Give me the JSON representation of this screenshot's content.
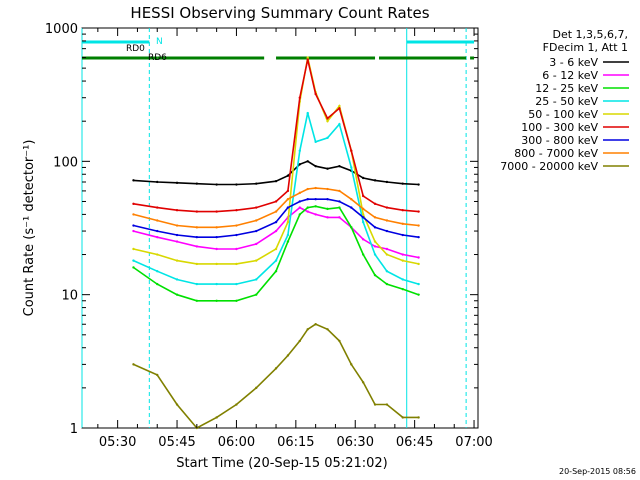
{
  "chart_data": {
    "type": "line",
    "title": "HESSI Observing Summary Count Rates",
    "xlabel": "Start Time (20-Sep-15 05:21:02)",
    "ylabel": "Count Rate (s⁻¹ detector⁻¹)",
    "yscale": "log",
    "xlim": [
      "05:21",
      "07:01"
    ],
    "ylim": [
      1,
      1000
    ],
    "x_ticks": [
      "05:30",
      "05:45",
      "06:00",
      "06:15",
      "06:30",
      "06:45",
      "07:00"
    ],
    "y_ticks": [
      {
        "value": 1,
        "label": "1"
      },
      {
        "value": 10,
        "label": "10"
      },
      {
        "value": 100,
        "label": "100"
      },
      {
        "value": 1000,
        "label": "1000"
      }
    ],
    "footer_stamp": "20-Sep-2015 08:56",
    "legend": {
      "placement": "outside-right",
      "header": [
        "Det 1,3,5,6,7,",
        "FDecim 1, Att 1"
      ]
    },
    "x": [
      "05:34",
      "05:40",
      "05:45",
      "05:50",
      "05:55",
      "06:00",
      "06:05",
      "06:10",
      "06:13",
      "06:16",
      "06:18",
      "06:20",
      "06:23",
      "06:26",
      "06:29",
      "06:32",
      "06:35",
      "06:38",
      "06:42",
      "06:46"
    ],
    "series": [
      {
        "name": "3 - 6 keV",
        "color": "#000000",
        "values": [
          72,
          70,
          69,
          68,
          67,
          67,
          68,
          71,
          78,
          95,
          100,
          92,
          88,
          92,
          85,
          75,
          72,
          70,
          68,
          67
        ]
      },
      {
        "name": "6 - 12 keV",
        "color": "#ff00ff",
        "values": [
          30,
          27,
          25,
          23,
          22,
          22,
          24,
          30,
          38,
          45,
          42,
          40,
          38,
          38,
          32,
          26,
          23,
          22,
          20,
          19
        ]
      },
      {
        "name": "12 - 25 keV",
        "color": "#00e000",
        "values": [
          16,
          12,
          10,
          9,
          9,
          9,
          10,
          15,
          25,
          40,
          45,
          46,
          44,
          45,
          32,
          20,
          14,
          12,
          11,
          10
        ]
      },
      {
        "name": "25 - 50 keV",
        "color": "#00e5e5",
        "values": [
          18,
          15,
          13,
          12,
          12,
          12,
          13,
          18,
          28,
          120,
          230,
          140,
          150,
          190,
          90,
          35,
          20,
          15,
          13,
          12
        ]
      },
      {
        "name": "50 - 100 keV",
        "color": "#d8d800",
        "values": [
          22,
          20,
          18,
          17,
          17,
          17,
          18,
          22,
          35,
          280,
          600,
          330,
          200,
          260,
          120,
          40,
          25,
          20,
          18,
          17
        ]
      },
      {
        "name": "100 - 300 keV",
        "color": "#e00000",
        "values": [
          48,
          45,
          43,
          42,
          42,
          43,
          45,
          50,
          60,
          300,
          580,
          320,
          210,
          250,
          120,
          55,
          48,
          45,
          43,
          42
        ]
      },
      {
        "name": "300 - 800 keV",
        "color": "#0000e0",
        "values": [
          33,
          30,
          28,
          27,
          27,
          28,
          30,
          35,
          45,
          50,
          52,
          52,
          52,
          50,
          45,
          38,
          32,
          30,
          28,
          27
        ]
      },
      {
        "name": "800 - 7000 keV",
        "color": "#ff8000",
        "values": [
          40,
          36,
          33,
          32,
          32,
          33,
          36,
          42,
          52,
          58,
          62,
          63,
          62,
          60,
          52,
          44,
          38,
          36,
          34,
          33
        ]
      },
      {
        "name": "7000 - 20000 keV",
        "color": "#808000",
        "values": [
          3,
          2.5,
          1.5,
          1,
          1.2,
          1.5,
          2,
          2.8,
          3.5,
          4.5,
          5.5,
          6,
          5.5,
          4.5,
          3,
          2.2,
          1.5,
          1.5,
          1.2,
          1.2
        ]
      }
    ],
    "attenuator_bars": [
      {
        "label": "",
        "color": "#00e5e5",
        "segments": [
          [
            "05:21",
            "05:38"
          ],
          [
            "06:43",
            "07:00"
          ]
        ]
      },
      {
        "label": "",
        "color": "#007f00",
        "segments": [
          [
            "05:21",
            "05:40"
          ],
          [
            "05:40",
            "06:07"
          ],
          [
            "06:10",
            "06:35"
          ],
          [
            "06:36",
            "06:58"
          ],
          [
            "06:59",
            "07:00"
          ]
        ]
      }
    ],
    "bar_tags": [
      {
        "text": "N",
        "color": "#00e5e5"
      },
      {
        "text": "RD0",
        "color": "#000000"
      },
      {
        "text": "RD6",
        "color": "#000000"
      }
    ],
    "vertical_markers": [
      {
        "time": "05:21",
        "style": "solid",
        "color": "#00e5e5"
      },
      {
        "time": "05:38",
        "style": "dashed",
        "color": "#00e5e5"
      },
      {
        "time": "06:43",
        "style": "solid",
        "color": "#00e5e5"
      },
      {
        "time": "06:58",
        "style": "dashed",
        "color": "#00e5e5"
      }
    ]
  }
}
